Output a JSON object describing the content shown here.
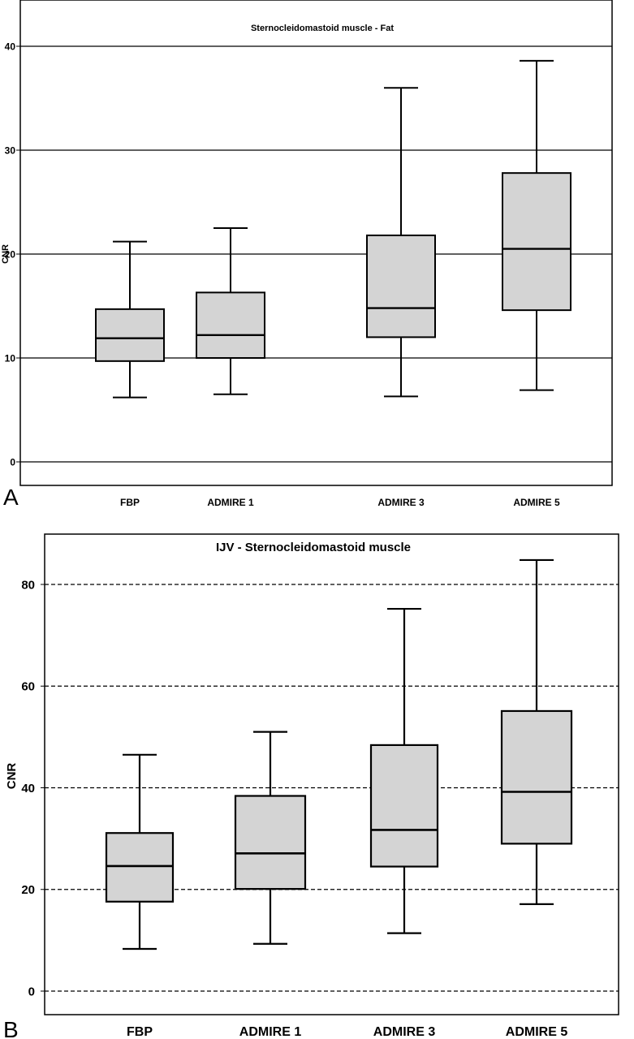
{
  "chart_data": [
    {
      "panel_label": "A",
      "type": "box",
      "title": "Sternocleidomastoid muscle - Fat",
      "xlabel": "",
      "ylabel": "CNR",
      "ylim": [
        -2.5,
        43
      ],
      "yticks": [
        0,
        10,
        20,
        30,
        40
      ],
      "grid": "horizontal solid",
      "categories": [
        "FBP",
        "ADMIRE 1",
        "ADMIRE 3",
        "ADMIRE 5"
      ],
      "boxes": [
        {
          "min": 6.2,
          "q1": 9.7,
          "median": 11.9,
          "q3": 14.7,
          "max": 21.2
        },
        {
          "min": 6.5,
          "q1": 10.0,
          "median": 12.2,
          "q3": 16.3,
          "max": 22.5
        },
        {
          "min": 6.3,
          "q1": 12.0,
          "median": 14.8,
          "q3": 21.8,
          "max": 36.0
        },
        {
          "min": 6.9,
          "q1": 14.6,
          "median": 20.5,
          "q3": 27.8,
          "max": 38.6
        }
      ]
    },
    {
      "panel_label": "B",
      "type": "box",
      "title": "IJV - Sternocleidomastoid muscle",
      "xlabel": "",
      "ylabel": "CNR",
      "ylim": [
        -5,
        88
      ],
      "yticks": [
        0,
        20,
        40,
        60,
        80
      ],
      "grid": "horizontal dashed",
      "categories": [
        "FBP",
        "ADMIRE 1",
        "ADMIRE 3",
        "ADMIRE 5"
      ],
      "boxes": [
        {
          "min": 8.3,
          "q1": 17.6,
          "median": 24.6,
          "q3": 31.1,
          "max": 46.5
        },
        {
          "min": 9.3,
          "q1": 20.1,
          "median": 27.1,
          "q3": 38.4,
          "max": 51.0
        },
        {
          "min": 11.4,
          "q1": 24.5,
          "median": 31.7,
          "q3": 48.4,
          "max": 75.2
        },
        {
          "min": 17.1,
          "q1": 29.0,
          "median": 39.2,
          "q3": 55.1,
          "max": 84.8
        }
      ]
    }
  ],
  "style": {
    "box_fill": "#d4d4d4",
    "stroke": "#000000"
  }
}
